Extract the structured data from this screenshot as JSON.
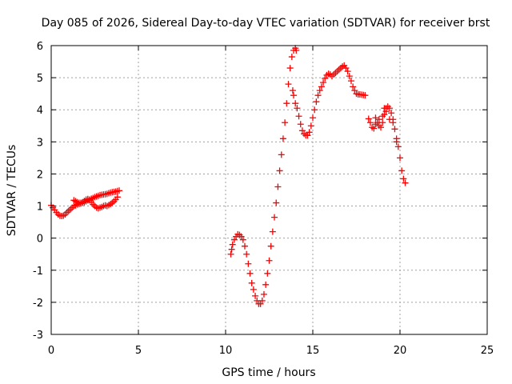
{
  "chart_data": {
    "type": "scatter",
    "title": "Day 085 of 2026, Sidereal Day-to-day VTEC variation (SDTVAR) for receiver brst",
    "xlabel": "GPS time / hours",
    "ylabel": "SDTVAR / TECUs",
    "xlim": [
      0,
      25
    ],
    "ylim": [
      -3,
      6
    ],
    "xticks": [
      "0",
      "5",
      "10",
      "15",
      "20",
      "25"
    ],
    "yticks": [
      "-3",
      "-2",
      "-1",
      "0",
      "1",
      "2",
      "3",
      "4",
      "5",
      "6"
    ],
    "grid": true,
    "legend": "none",
    "marker_color": "#ff0000",
    "series": [
      {
        "points": [
          [
            0.0,
            1.02
          ],
          [
            0.1,
            0.95
          ],
          [
            0.2,
            0.88
          ],
          [
            0.3,
            0.8
          ],
          [
            0.4,
            0.74
          ],
          [
            0.5,
            0.7
          ],
          [
            0.6,
            0.69
          ],
          [
            0.7,
            0.7
          ],
          [
            0.8,
            0.74
          ],
          [
            0.9,
            0.8
          ],
          [
            1.0,
            0.85
          ],
          [
            1.1,
            0.9
          ],
          [
            1.2,
            0.95
          ],
          [
            1.3,
            1.0
          ],
          [
            1.4,
            1.02
          ],
          [
            1.5,
            1.05
          ],
          [
            1.6,
            1.07
          ],
          [
            1.7,
            1.08
          ],
          [
            1.8,
            1.1
          ],
          [
            1.9,
            1.12
          ],
          [
            2.0,
            1.15
          ],
          [
            2.1,
            1.18
          ],
          [
            2.2,
            1.2
          ],
          [
            2.3,
            1.23
          ],
          [
            2.4,
            1.25
          ],
          [
            2.5,
            1.28
          ],
          [
            2.6,
            1.3
          ],
          [
            2.7,
            1.32
          ],
          [
            2.8,
            1.34
          ],
          [
            2.9,
            1.35
          ],
          [
            3.0,
            1.36
          ],
          [
            3.1,
            1.37
          ],
          [
            3.2,
            1.38
          ],
          [
            3.3,
            1.4
          ],
          [
            3.4,
            1.42
          ],
          [
            3.5,
            1.43
          ],
          [
            3.6,
            1.44
          ],
          [
            3.7,
            1.45
          ],
          [
            3.8,
            1.47
          ],
          [
            3.9,
            1.48
          ],
          [
            1.3,
            1.18
          ],
          [
            1.4,
            1.15
          ],
          [
            1.5,
            1.12
          ],
          [
            1.6,
            1.1
          ],
          [
            1.7,
            1.1
          ],
          [
            1.8,
            1.12
          ],
          [
            1.9,
            1.16
          ],
          [
            2.0,
            1.2
          ],
          [
            2.1,
            1.22
          ],
          [
            2.2,
            1.18
          ],
          [
            2.3,
            1.12
          ],
          [
            2.4,
            1.05
          ],
          [
            2.5,
            1.0
          ],
          [
            2.6,
            0.95
          ],
          [
            2.7,
            0.93
          ],
          [
            2.8,
            0.95
          ],
          [
            2.9,
            0.97
          ],
          [
            3.0,
            1.0
          ],
          [
            3.1,
            1.02
          ],
          [
            3.2,
            1.0
          ],
          [
            3.3,
            1.03
          ],
          [
            3.4,
            1.06
          ],
          [
            3.5,
            1.1
          ],
          [
            3.6,
            1.15
          ],
          [
            3.7,
            1.2
          ],
          [
            3.8,
            1.28
          ],
          [
            10.3,
            -0.5
          ],
          [
            10.35,
            -0.35
          ],
          [
            10.4,
            -0.2
          ],
          [
            10.5,
            -0.05
          ],
          [
            10.6,
            0.05
          ],
          [
            10.7,
            0.12
          ],
          [
            10.8,
            0.1
          ],
          [
            10.9,
            0.05
          ],
          [
            11.0,
            -0.05
          ],
          [
            11.1,
            -0.25
          ],
          [
            11.2,
            -0.5
          ],
          [
            11.3,
            -0.8
          ],
          [
            11.4,
            -1.1
          ],
          [
            11.5,
            -1.4
          ],
          [
            11.6,
            -1.6
          ],
          [
            11.7,
            -1.8
          ],
          [
            11.8,
            -1.95
          ],
          [
            11.9,
            -2.05
          ],
          [
            12.0,
            -2.05
          ],
          [
            12.1,
            -1.95
          ],
          [
            12.2,
            -1.75
          ],
          [
            12.3,
            -1.45
          ],
          [
            12.4,
            -1.1
          ],
          [
            12.5,
            -0.7
          ],
          [
            12.6,
            -0.25
          ],
          [
            12.7,
            0.2
          ],
          [
            12.8,
            0.65
          ],
          [
            12.9,
            1.1
          ],
          [
            13.0,
            1.6
          ],
          [
            13.1,
            2.1
          ],
          [
            13.2,
            2.6
          ],
          [
            13.3,
            3.1
          ],
          [
            13.4,
            3.6
          ],
          [
            13.5,
            4.2
          ],
          [
            13.6,
            4.8
          ],
          [
            13.7,
            5.3
          ],
          [
            13.8,
            5.65
          ],
          [
            13.9,
            5.85
          ],
          [
            14.0,
            5.92
          ],
          [
            14.05,
            5.85
          ],
          [
            13.85,
            4.6
          ],
          [
            13.9,
            4.45
          ],
          [
            14.0,
            4.2
          ],
          [
            14.1,
            4.05
          ],
          [
            14.2,
            3.8
          ],
          [
            14.3,
            3.55
          ],
          [
            14.4,
            3.35
          ],
          [
            14.5,
            3.25
          ],
          [
            14.6,
            3.2
          ],
          [
            14.7,
            3.2
          ],
          [
            14.8,
            3.3
          ],
          [
            14.9,
            3.5
          ],
          [
            15.0,
            3.75
          ],
          [
            15.1,
            4.0
          ],
          [
            15.2,
            4.25
          ],
          [
            15.3,
            4.45
          ],
          [
            15.4,
            4.6
          ],
          [
            15.5,
            4.72
          ],
          [
            15.6,
            4.85
          ],
          [
            15.7,
            4.98
          ],
          [
            15.8,
            5.08
          ],
          [
            15.9,
            5.12
          ],
          [
            16.0,
            5.1
          ],
          [
            16.1,
            5.05
          ],
          [
            16.2,
            5.1
          ],
          [
            16.3,
            5.15
          ],
          [
            16.4,
            5.2
          ],
          [
            16.5,
            5.25
          ],
          [
            16.6,
            5.3
          ],
          [
            16.7,
            5.35
          ],
          [
            16.8,
            5.38
          ],
          [
            16.9,
            5.3
          ],
          [
            17.0,
            5.2
          ],
          [
            17.1,
            5.05
          ],
          [
            17.2,
            4.9
          ],
          [
            17.3,
            4.72
          ],
          [
            17.4,
            4.6
          ],
          [
            17.5,
            4.5
          ],
          [
            17.6,
            4.48
          ],
          [
            17.7,
            4.48
          ],
          [
            17.8,
            4.47
          ],
          [
            17.9,
            4.46
          ],
          [
            18.0,
            4.45
          ],
          [
            18.2,
            3.72
          ],
          [
            18.3,
            3.6
          ],
          [
            18.4,
            3.45
          ],
          [
            18.5,
            3.42
          ],
          [
            18.6,
            3.55
          ],
          [
            18.7,
            3.6
          ],
          [
            18.8,
            3.5
          ],
          [
            18.9,
            3.45
          ],
          [
            19.0,
            3.6
          ],
          [
            19.1,
            3.85
          ],
          [
            19.2,
            4.05
          ],
          [
            19.3,
            4.1
          ],
          [
            19.4,
            4.05
          ],
          [
            19.5,
            3.9
          ],
          [
            19.6,
            3.7
          ],
          [
            19.7,
            3.4
          ],
          [
            19.8,
            3.1
          ],
          [
            19.9,
            2.85
          ],
          [
            20.0,
            2.5
          ],
          [
            20.1,
            2.1
          ],
          [
            20.2,
            1.85
          ],
          [
            20.3,
            1.72
          ],
          [
            18.6,
            3.75
          ],
          [
            18.8,
            3.7
          ],
          [
            19.0,
            3.8
          ],
          [
            19.1,
            4.05
          ],
          [
            19.2,
            3.95
          ],
          [
            19.4,
            3.7
          ],
          [
            19.6,
            3.6
          ],
          [
            19.8,
            3.0
          ]
        ]
      }
    ]
  }
}
